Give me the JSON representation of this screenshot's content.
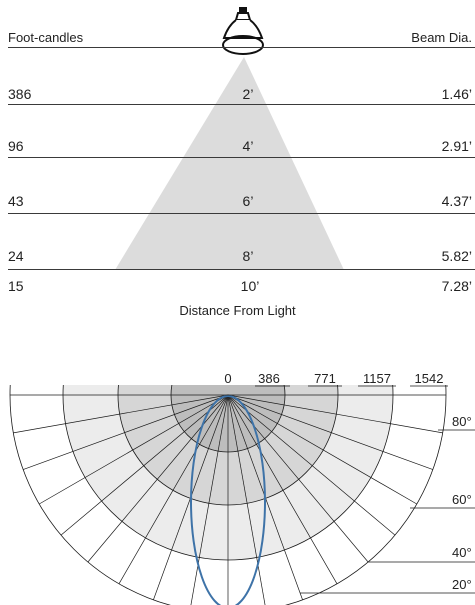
{
  "header": {
    "left_label": "Foot-candles",
    "right_label": "Beam Dia."
  },
  "rows": [
    {
      "footcandles": "386",
      "distance": "2’",
      "beam_dia": "1.46’"
    },
    {
      "footcandles": "96",
      "distance": "4’",
      "beam_dia": "2.91’"
    },
    {
      "footcandles": "43",
      "distance": "6’",
      "beam_dia": "4.37’"
    },
    {
      "footcandles": "24",
      "distance": "8’",
      "beam_dia": "5.82’"
    },
    {
      "footcandles": "15",
      "distance": "10’",
      "beam_dia": "7.28’"
    }
  ],
  "cone_caption": "Distance From Light",
  "polar": {
    "intensity_ticks": [
      "0",
      "386",
      "771",
      "1157",
      "1542"
    ],
    "angle_labels": [
      "80°",
      "60°",
      "40°",
      "20°"
    ],
    "curve_color": "#3e73a8"
  },
  "colors": {
    "cone_fill": "#dcdcdc",
    "rule": "#3a3a3a"
  },
  "icons": [
    "lamp-icon"
  ]
}
